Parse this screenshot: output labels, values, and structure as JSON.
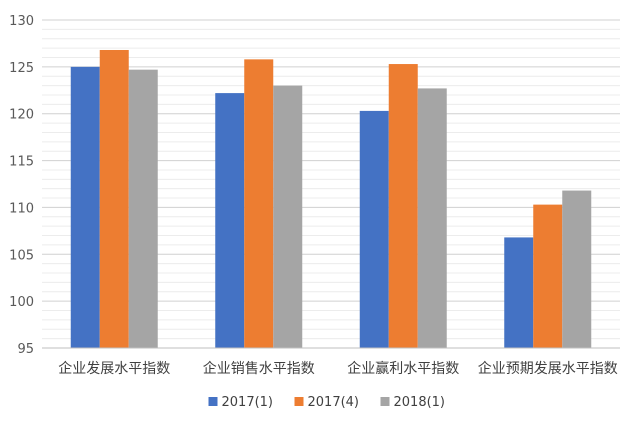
{
  "chart_data": {
    "type": "bar",
    "title": "",
    "xlabel": "",
    "ylabel": "",
    "categories": [
      "企业发展水平指数",
      "企业销售水平指数",
      "企业赢利水平指数",
      "企业预期发展水平指数"
    ],
    "series": [
      {
        "name": "2017(1)",
        "color": "#4472C4",
        "values": [
          125.0,
          122.2,
          120.3,
          106.8
        ]
      },
      {
        "name": "2017(4)",
        "color": "#ED7D31",
        "values": [
          126.8,
          125.8,
          125.3,
          110.3
        ]
      },
      {
        "name": "2018(1)",
        "color": "#A5A5A5",
        "values": [
          124.7,
          123.0,
          122.7,
          111.8
        ]
      }
    ],
    "ylim": [
      95,
      130
    ],
    "yticks": [
      95,
      100,
      105,
      110,
      115,
      120,
      125,
      130
    ],
    "minor_grid_step": 1,
    "grid": true,
    "legend_position": "bottom"
  }
}
